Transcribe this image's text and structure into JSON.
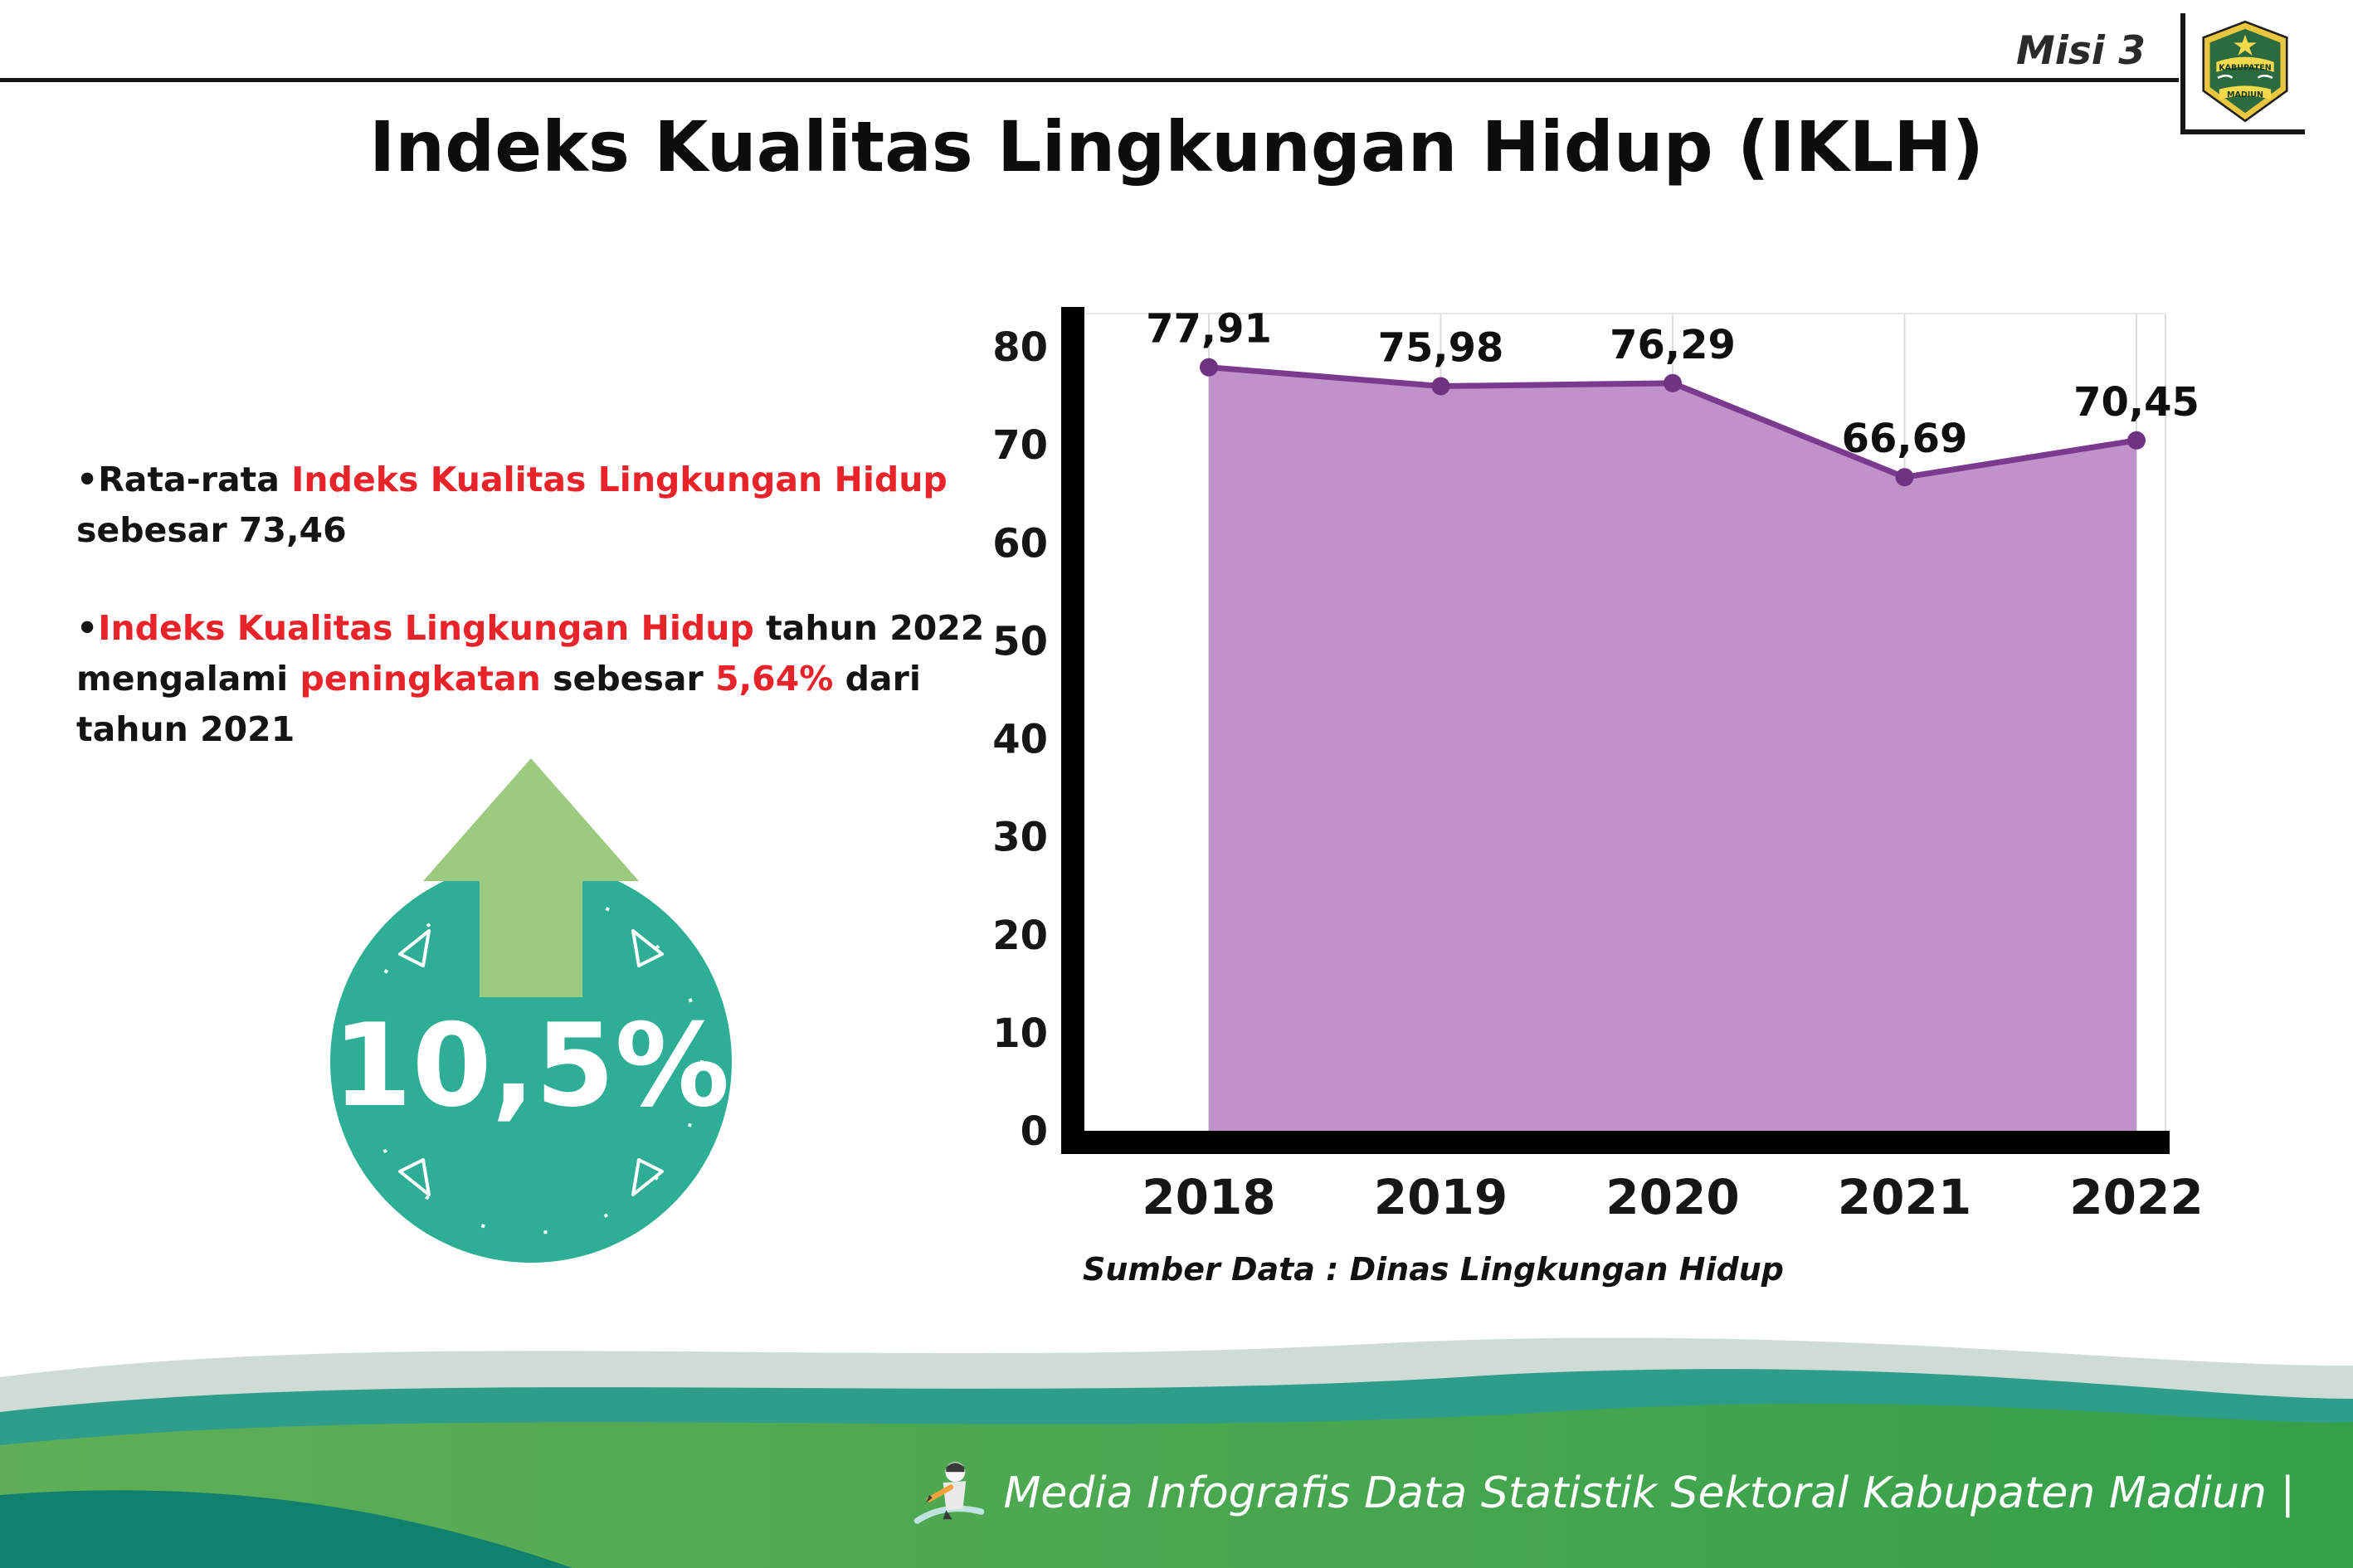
{
  "header": {
    "misi_label": "Misi 3",
    "title": "Indeks Kualitas Lingkungan Hidup (IKLH)",
    "logo": {
      "top_text": "KABUPATEN",
      "bottom_text": "MADIUN"
    }
  },
  "bullets": {
    "marker": "•",
    "b1": {
      "t1": "Rata-rata ",
      "t2": "Indeks Kualitas Lingkungan Hidup",
      "t3": " sebesar 73,46"
    },
    "b2": {
      "t1": "Indeks Kualitas Lingkungan Hidup",
      "t2": " tahun 2022 mengalami ",
      "t3": "peningkatan",
      "t4": " sebesar ",
      "t5": "5,64%",
      "t6": " dari tahun 2021"
    }
  },
  "badge": {
    "value": "10,5%",
    "circle_color": "#2fae97",
    "arrow_color": "#9cca7e",
    "arrow_outline": "#2c3e6b"
  },
  "chart_data": {
    "type": "area",
    "title": "Indeks Kualitas Lingkungan Hidup (IKLH)",
    "categories": [
      "2018",
      "2019",
      "2020",
      "2021",
      "2022"
    ],
    "values": [
      77.91,
      75.98,
      76.29,
      66.69,
      70.45
    ],
    "value_labels": [
      "77,91",
      "75,98",
      "76,29",
      "66,69",
      "70,45"
    ],
    "xlabel": "",
    "ylabel": "",
    "ylim": [
      0,
      80
    ],
    "ytick_step": 10,
    "grid": "vertical",
    "legend": "none",
    "line_color": "#7a3b8f",
    "point_color": "#6e3482",
    "fill_color": "#c192ca",
    "axis_color": "#000000",
    "source": "Sumber Data : Dinas Lingkungan Hidup"
  },
  "footer": {
    "text": "Media Infografis Data Statistik Sektoral Kabupaten Madiun |"
  },
  "colors": {
    "highlight_red": "#e8232a",
    "footer_pale": "#cfdcd6",
    "footer_teal": "#2e9d8c",
    "footer_green_light": "#5fae57",
    "footer_green": "#35a04a",
    "footer_dark_teal": "#12806f"
  }
}
